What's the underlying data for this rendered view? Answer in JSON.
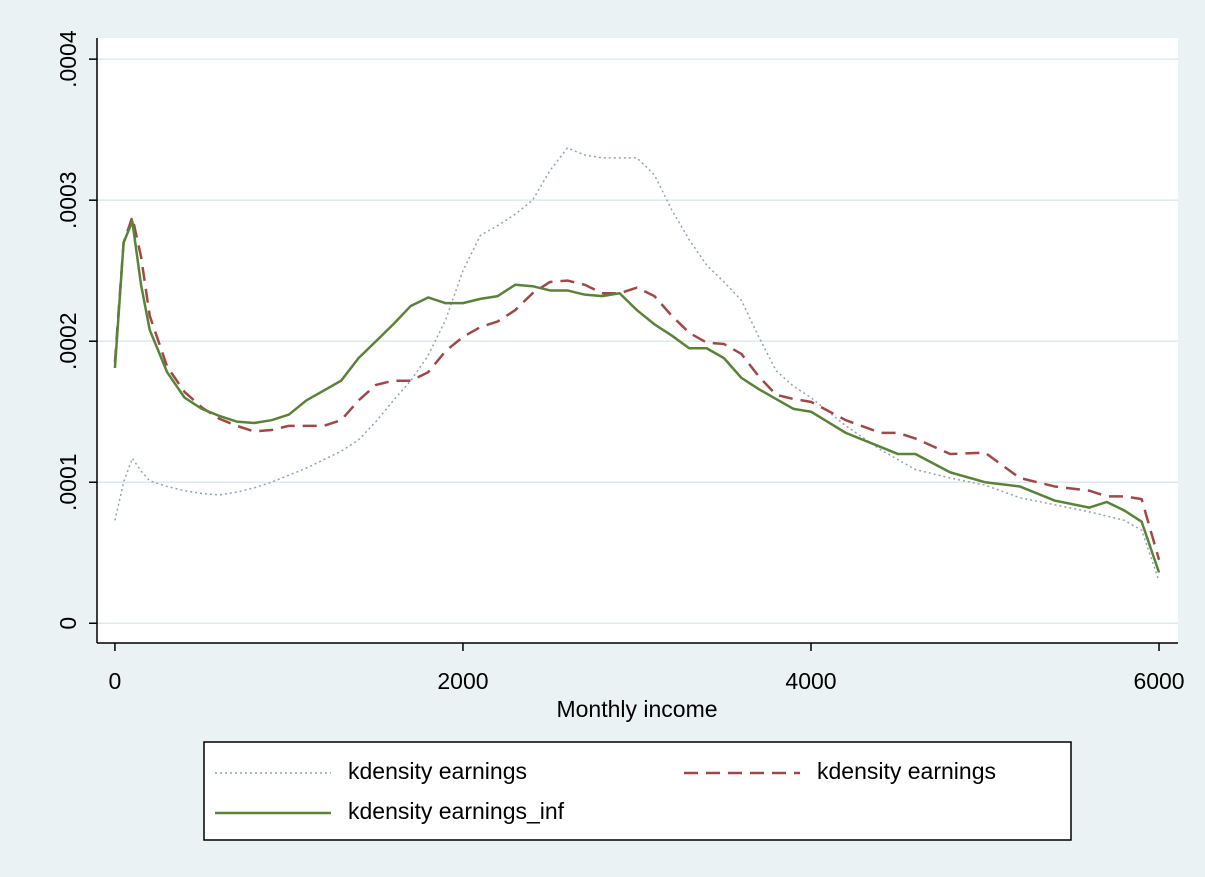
{
  "chart_data": {
    "type": "line",
    "x_label": "Monthly income",
    "x": [
      0,
      50,
      100,
      150,
      200,
      300,
      400,
      500,
      600,
      700,
      800,
      900,
      1000,
      1100,
      1200,
      1300,
      1400,
      1500,
      1600,
      1700,
      1800,
      1900,
      2000,
      2100,
      2200,
      2300,
      2400,
      2500,
      2600,
      2700,
      2800,
      2900,
      3000,
      3100,
      3200,
      3300,
      3400,
      3500,
      3600,
      3700,
      3800,
      3900,
      4000,
      4200,
      4400,
      4500,
      4600,
      4800,
      5000,
      5200,
      5400,
      5600,
      5700,
      5800,
      5900,
      6000
    ],
    "series": [
      {
        "name": "kdensity earnings",
        "color": "#8fa3b8",
        "dash": "dotted",
        "values": [
          7.3e-05,
          0.0001,
          0.000117,
          0.000108,
          0.000101,
          9.7e-05,
          9.4e-05,
          9.2e-05,
          9.1e-05,
          9.3e-05,
          9.6e-05,
          0.0001,
          0.000105,
          0.00011,
          0.000116,
          0.000122,
          0.00013,
          0.000143,
          0.000158,
          0.000172,
          0.00019,
          0.000215,
          0.00025,
          0.000275,
          0.000282,
          0.00029,
          0.0003,
          0.000321,
          0.000337,
          0.000332,
          0.00033,
          0.00033,
          0.00033,
          0.000318,
          0.000293,
          0.000272,
          0.000254,
          0.000242,
          0.000229,
          0.000203,
          0.000179,
          0.000168,
          0.00016,
          0.00014,
          0.000123,
          0.000116,
          0.000109,
          0.000103,
          9.8e-05,
          8.9e-05,
          8.4e-05,
          7.9e-05,
          7.6e-05,
          7.3e-05,
          6.6e-05,
          3e-05
        ]
      },
      {
        "name": "kdensity earnings",
        "color": "#a04848",
        "dash": "dashed",
        "values": [
          0.000185,
          0.00027,
          0.000288,
          0.00026,
          0.000218,
          0.000182,
          0.000164,
          0.000153,
          0.000145,
          0.00014,
          0.000136,
          0.000137,
          0.00014,
          0.00014,
          0.00014,
          0.000144,
          0.000158,
          0.000169,
          0.000172,
          0.000172,
          0.000178,
          0.000193,
          0.000203,
          0.00021,
          0.000214,
          0.000222,
          0.000234,
          0.000242,
          0.000243,
          0.00024,
          0.000234,
          0.000234,
          0.000238,
          0.000232,
          0.000218,
          0.000206,
          0.000199,
          0.000198,
          0.000191,
          0.000175,
          0.000162,
          0.000159,
          0.000157,
          0.000144,
          0.000135,
          0.000135,
          0.000131,
          0.00012,
          0.000121,
          0.000103,
          9.7e-05,
          9.4e-05,
          9e-05,
          9e-05,
          8.8e-05,
          4.5e-05
        ]
      },
      {
        "name": "kdensity earnings_inf",
        "color": "#5a8238",
        "dash": "solid",
        "values": [
          0.000181,
          0.00027,
          0.000285,
          0.00024,
          0.000208,
          0.000178,
          0.00016,
          0.000152,
          0.000147,
          0.000143,
          0.000142,
          0.000144,
          0.000148,
          0.000158,
          0.000165,
          0.000172,
          0.000188,
          0.0002,
          0.000212,
          0.000225,
          0.000231,
          0.000227,
          0.000227,
          0.00023,
          0.000232,
          0.00024,
          0.000239,
          0.000236,
          0.000236,
          0.000233,
          0.000232,
          0.000234,
          0.000222,
          0.000212,
          0.000204,
          0.000195,
          0.000195,
          0.000188,
          0.000174,
          0.000166,
          0.000159,
          0.000152,
          0.00015,
          0.000135,
          0.000125,
          0.00012,
          0.00012,
          0.000107,
          0.0001,
          9.7e-05,
          8.7e-05,
          8.2e-05,
          8.6e-05,
          8e-05,
          7.2e-05,
          3.6e-05
        ]
      }
    ],
    "xlim": [
      -103,
      6109
    ],
    "xticks": [
      0,
      2000,
      4000,
      6000
    ],
    "ylim": [
      -1.4e-05,
      0.000415
    ],
    "yticks": [
      0,
      {
        "value": 0.0001,
        "label": ".0001"
      },
      {
        "value": 0.0002,
        "label": ".0002"
      },
      {
        "value": 0.0003,
        "label": ".0003"
      },
      {
        "value": 0.0004,
        "label": ".0004"
      }
    ],
    "grid": true,
    "legend": "bottom"
  }
}
